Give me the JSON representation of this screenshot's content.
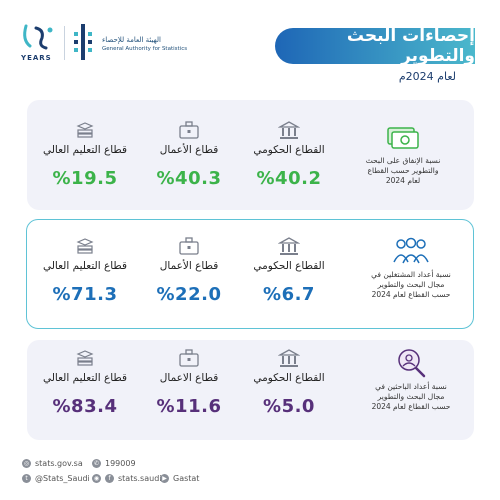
{
  "header": {
    "years_label": "YEARS",
    "org_arabic": "الهيئة العامة للإحصاء",
    "org_english": "General Authority for Statistics",
    "title": "إحصاءات البحث والتطوير",
    "subtitle": "لعام 2024م"
  },
  "colors": {
    "green": "#3cb34a",
    "blue": "#1d6fb8",
    "purple": "#57307a",
    "title_gradient_start": "#1e66b6",
    "title_gradient_end": "#4bb8cc"
  },
  "sections": [
    {
      "description": "نسبة الإنفاق على البحث والتطوير حسب القطاع لعام 2024",
      "icon": "money-icon",
      "items": [
        {
          "label": "القطاع الحكومي",
          "value": "%40.2",
          "icon": "government-building-icon"
        },
        {
          "label": "قطاع الأعمال",
          "value": "%40.3",
          "icon": "briefcase-icon"
        },
        {
          "label": "قطاع التعليم العالي",
          "value": "%19.5",
          "icon": "books-icon"
        }
      ]
    },
    {
      "description": "نسبة أعداد المشتغلين في مجال البحث والتطوير حسب القطاع لعام 2024",
      "icon": "people-group-icon",
      "items": [
        {
          "label": "القطاع الحكومي",
          "value": "%6.7",
          "icon": "government-building-icon"
        },
        {
          "label": "قطاع الأعمال",
          "value": "%22.0",
          "icon": "briefcase-icon"
        },
        {
          "label": "قطاع التعليم العالي",
          "value": "%71.3",
          "icon": "books-icon"
        }
      ]
    },
    {
      "description": "نسبة أعداد الباحثين في مجال البحث والتطوير حسب القطاع لعام 2024",
      "icon": "researcher-search-icon",
      "items": [
        {
          "label": "القطاع الحكومي",
          "value": "%5.0",
          "icon": "government-building-icon"
        },
        {
          "label": "قطاع الاعمال",
          "value": "%11.6",
          "icon": "briefcase-icon"
        },
        {
          "label": "قطاع التعليم العالي",
          "value": "%83.4",
          "icon": "books-icon"
        }
      ]
    }
  ],
  "footer": {
    "website": "stats.gov.sa",
    "phone": "199009",
    "twitter": "@Stats_Saudi",
    "social": "stats.saudi",
    "handle": "Gastat"
  }
}
